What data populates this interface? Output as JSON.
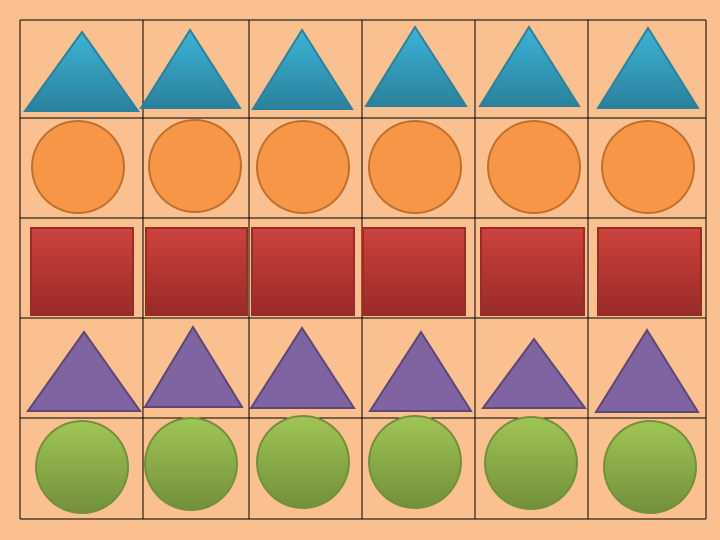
{
  "background_color": "#fac090",
  "grid": {
    "rows": 5,
    "columns": 6,
    "line_color": "#000000"
  },
  "rows": [
    {
      "shape": "triangle",
      "color_top": "#3cb4d6",
      "color_bottom": "#2a819c",
      "stroke": "#2a819c"
    },
    {
      "shape": "circle",
      "color_top": "#f79646",
      "color_bottom": "#f79646",
      "stroke": "#c0702d"
    },
    {
      "shape": "square",
      "color_top": "#cd423c",
      "color_bottom": "#992b28",
      "stroke": "#992b28"
    },
    {
      "shape": "triangle",
      "color_top": "#8064a2",
      "color_bottom": "#8064a2",
      "stroke": "#5c4776"
    },
    {
      "shape": "circle",
      "color_top": "#a0c556",
      "color_bottom": "#72903a",
      "stroke": "#72903a"
    }
  ]
}
